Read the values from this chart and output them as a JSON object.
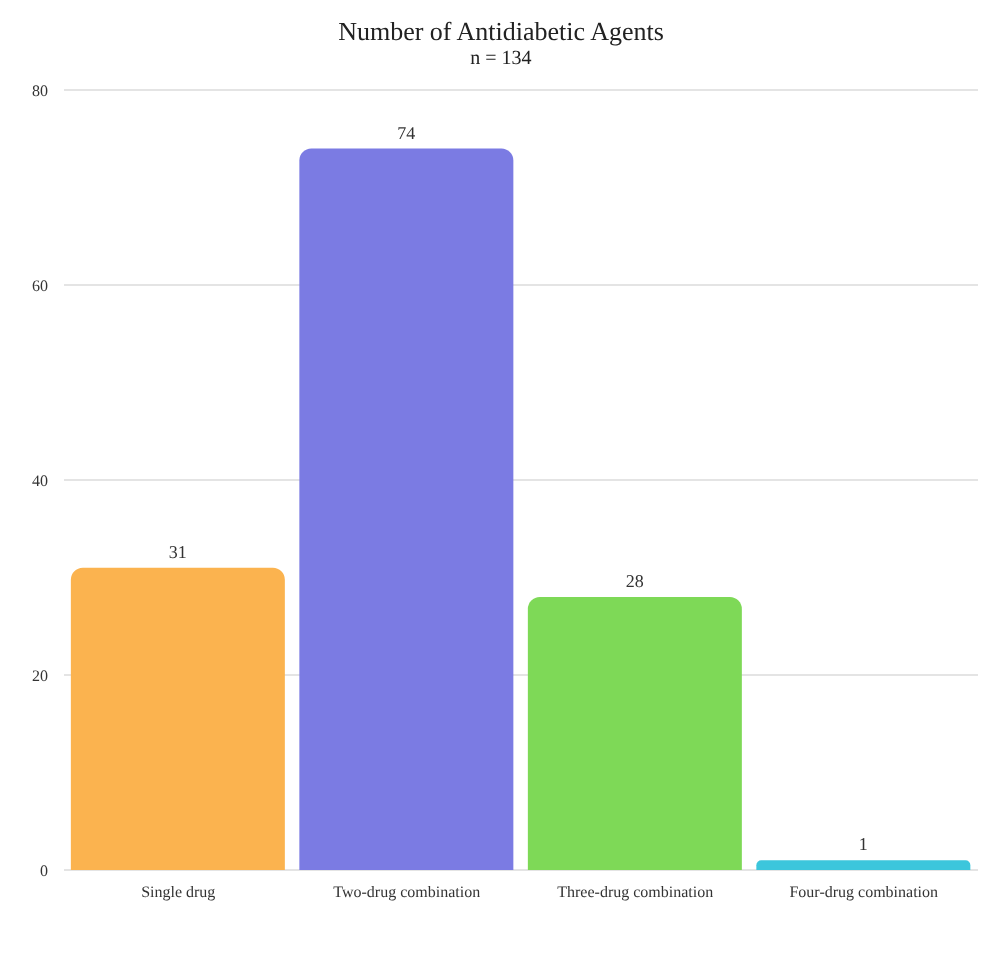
{
  "chart_data": {
    "type": "bar",
    "title": "Number of Antidiabetic Agents",
    "subtitle": "n = 134",
    "categories": [
      "Single drug",
      "Two-drug combination",
      "Three-drug combination",
      "Four-drug combination"
    ],
    "values": [
      31,
      74,
      28,
      1
    ],
    "colors": [
      "#fbb34f",
      "#7b7be3",
      "#7ed957",
      "#3cc6dc"
    ],
    "ylim": [
      0,
      80
    ],
    "yticks": [
      0,
      20,
      40,
      60,
      80
    ],
    "grid": "y",
    "data_labels": true
  }
}
